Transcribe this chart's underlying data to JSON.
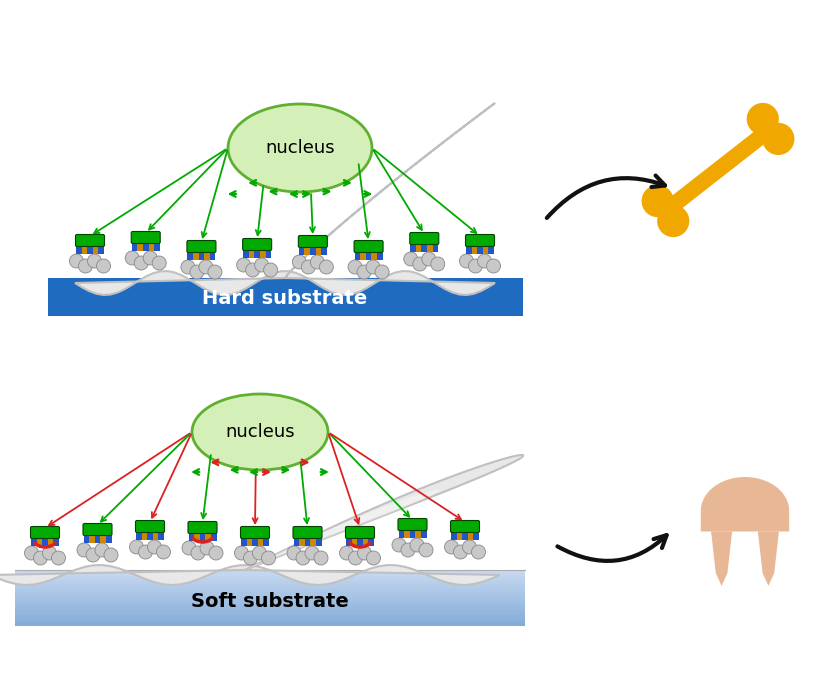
{
  "bg": "#ffffff",
  "hard_sub_color": "#1e6bbf",
  "hard_sub_label": "Hard substrate",
  "soft_sub_top": "#c5d8f0",
  "soft_sub_bot": "#90b8e0",
  "soft_sub_label": "Soft substrate",
  "nuc_fill": "#d4f0b8",
  "nuc_edge": "#60b030",
  "nuc_label": "nucleus",
  "cell_fill": "#e8e8e8",
  "cell_edge": "#b8b8b8",
  "cell_fill2": "#d0d8e8",
  "green_arr": "#00aa00",
  "red_arr": "#dd2020",
  "green_rect": "#00aa00",
  "orange_stripe": "#cc8800",
  "blue_stripe": "#2255cc",
  "nano_fill": "#c8c8c8",
  "nano_edge": "#888888",
  "bone_color": "#f0a800",
  "tooth_color": "#e8b896",
  "red_arc": "#dd2020",
  "arrow_black": "#111111"
}
